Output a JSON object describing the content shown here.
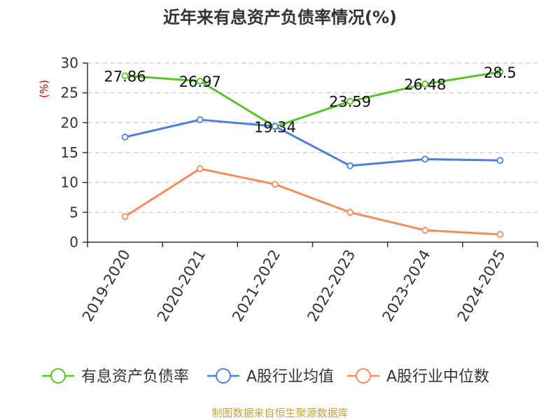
{
  "chart_data": {
    "type": "line",
    "title": "近年来有息资产负债率情况(%)",
    "ylabel": "(%)",
    "categories": [
      "2019-2020",
      "2020-2021",
      "2021-2022",
      "2022-2023",
      "2023-2024",
      "2024-2025"
    ],
    "ylim": [
      0,
      30
    ],
    "yticks": [
      0,
      5,
      10,
      15,
      20,
      25,
      30
    ],
    "grid": true,
    "legend_position": "bottom",
    "series": [
      {
        "name": "有息资产负债率",
        "values": [
          27.86,
          26.97,
          19.34,
          23.59,
          26.48,
          28.5
        ],
        "labels": [
          "27.86",
          "26.97",
          "19.34",
          "23.59",
          "26.48",
          "28.5"
        ],
        "color": "#5ac226"
      },
      {
        "name": "A股行业均值",
        "values": [
          17.6,
          20.5,
          19.4,
          12.8,
          13.9,
          13.7
        ],
        "color": "#4d7fd8"
      },
      {
        "name": "A股行业中位数",
        "values": [
          4.3,
          12.3,
          9.7,
          5.0,
          2.0,
          1.3
        ],
        "color": "#f28d5c"
      }
    ]
  },
  "source": "制图数据来自恒生聚源数据库"
}
